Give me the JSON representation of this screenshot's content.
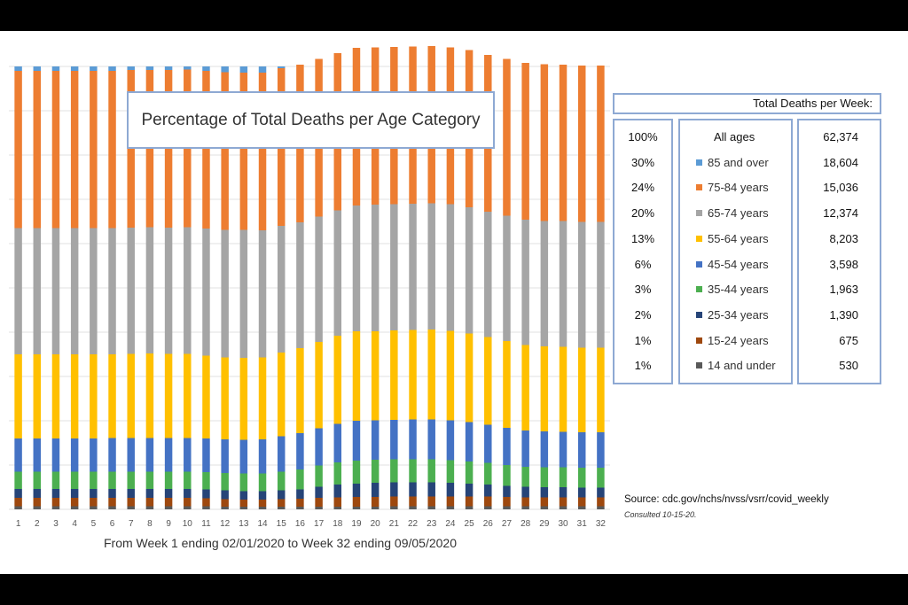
{
  "chart_data": {
    "type": "bar",
    "stacked": true,
    "percent": true,
    "title": "Percentage of Total  Deaths per Age Category",
    "xlabel": "From Week 1 ending 02/01/2020 to Week 32 ending 09/05/2020",
    "ylim": [
      0,
      100
    ],
    "grid": true,
    "categories": [
      "1",
      "2",
      "3",
      "4",
      "5",
      "6",
      "7",
      "8",
      "9",
      "10",
      "11",
      "12",
      "13",
      "14",
      "15",
      "16",
      "17",
      "18",
      "19",
      "20",
      "21",
      "22",
      "23",
      "24",
      "25",
      "26",
      "27",
      "28",
      "29",
      "30",
      "31",
      "32"
    ],
    "series": [
      {
        "name": "14 and under",
        "color": "#595959",
        "values": [
          0.7,
          0.7,
          0.7,
          0.7,
          0.7,
          0.7,
          0.7,
          0.7,
          0.7,
          0.7,
          0.7,
          0.6,
          0.6,
          0.6,
          0.6,
          0.6,
          0.6,
          0.6,
          0.6,
          0.6,
          0.7,
          0.7,
          0.7,
          0.7,
          0.7,
          0.7,
          0.7,
          0.7,
          0.7,
          0.7,
          0.7,
          0.7
        ]
      },
      {
        "name": "15-24 years",
        "color": "#9e480e",
        "values": [
          1.9,
          1.9,
          1.9,
          1.9,
          1.9,
          1.9,
          1.9,
          1.9,
          1.9,
          1.9,
          1.8,
          1.7,
          1.6,
          1.6,
          1.7,
          1.8,
          2.0,
          2.1,
          2.2,
          2.2,
          2.2,
          2.2,
          2.2,
          2.2,
          2.2,
          2.2,
          2.1,
          2.0,
          2.0,
          2.0,
          2.0,
          2.0
        ]
      },
      {
        "name": "25-34 years",
        "color": "#264478",
        "values": [
          2.0,
          2.0,
          2.0,
          2.0,
          2.0,
          2.0,
          2.0,
          2.0,
          2.0,
          2.0,
          2.0,
          2.0,
          1.9,
          1.9,
          2.0,
          2.1,
          2.5,
          2.9,
          3.0,
          3.2,
          3.2,
          3.2,
          3.2,
          3.1,
          2.9,
          2.7,
          2.5,
          2.4,
          2.3,
          2.3,
          2.2,
          2.2
        ]
      },
      {
        "name": "35-44 years",
        "color": "#4caf50",
        "values": [
          3.9,
          3.9,
          3.9,
          3.9,
          3.9,
          3.9,
          3.9,
          3.9,
          3.9,
          3.9,
          3.9,
          3.9,
          4.0,
          4.0,
          4.2,
          4.5,
          4.8,
          5.0,
          5.2,
          5.2,
          5.2,
          5.2,
          5.2,
          5.1,
          5.0,
          4.9,
          4.7,
          4.5,
          4.5,
          4.5,
          4.5,
          4.5
        ]
      },
      {
        "name": "45-54 years",
        "color": "#4472c4",
        "values": [
          7.5,
          7.5,
          7.5,
          7.5,
          7.5,
          7.6,
          7.6,
          7.6,
          7.6,
          7.6,
          7.6,
          7.6,
          7.6,
          7.7,
          8.0,
          8.2,
          8.4,
          8.7,
          9.0,
          8.9,
          8.9,
          9.0,
          9.0,
          9.0,
          8.9,
          8.6,
          8.4,
          8.2,
          8.1,
          8.0,
          8.0,
          8.0
        ]
      },
      {
        "name": "55-64 years",
        "color": "#ffc000",
        "values": [
          19.0,
          19.0,
          19.0,
          19.0,
          19.0,
          18.9,
          19.0,
          19.1,
          19.0,
          19.0,
          18.7,
          18.5,
          18.5,
          18.5,
          18.9,
          19.2,
          19.5,
          19.9,
          20.2,
          20.1,
          20.2,
          20.2,
          20.3,
          20.2,
          20.0,
          19.8,
          19.6,
          19.3,
          19.2,
          19.2,
          19.1,
          19.1
        ]
      },
      {
        "name": "65-74 years",
        "color": "#a5a5a5",
        "values": [
          28.5,
          28.5,
          28.5,
          28.5,
          28.5,
          28.5,
          28.5,
          28.5,
          28.5,
          28.6,
          28.7,
          28.8,
          28.9,
          28.7,
          28.6,
          28.4,
          28.3,
          28.3,
          28.4,
          28.6,
          28.5,
          28.5,
          28.5,
          28.6,
          28.5,
          28.3,
          28.3,
          28.3,
          28.3,
          28.4,
          28.4,
          28.4
        ]
      },
      {
        "name": "75-84 years",
        "color": "#ed7d31",
        "values": [
          35.5,
          35.5,
          35.5,
          35.5,
          35.5,
          35.5,
          35.6,
          35.5,
          35.6,
          35.6,
          35.6,
          35.6,
          35.5,
          35.6,
          35.6,
          35.6,
          35.6,
          35.5,
          35.6,
          35.5,
          35.5,
          35.5,
          35.5,
          35.4,
          35.5,
          35.4,
          35.4,
          35.4,
          35.4,
          35.3,
          35.3,
          35.3
        ]
      },
      {
        "name": "85 and over",
        "color": "#5b9bd5",
        "values": [
          1.0,
          1.0,
          1.0,
          1.0,
          1.0,
          1.0,
          0.8,
          0.8,
          0.8,
          0.7,
          1.0,
          2.8,
          3.4,
          3.4,
          2.5,
          1.6,
          0.5,
          -1.0,
          -2.2,
          -2.3,
          -2.4,
          -2.5,
          -2.6,
          -2.3,
          -2.0,
          -1.3,
          -0.7,
          -0.2,
          -0.0,
          -0.0,
          -0.0,
          -0.0
        ]
      }
    ]
  },
  "legend": {
    "header": "Total Deaths per Week:",
    "pct_values": [
      "100%",
      "30%",
      "24%",
      "20%",
      "13%",
      "6%",
      "3%",
      "2%",
      "1%",
      "1%"
    ],
    "age_header": "All ages",
    "totals": [
      "62,374",
      "18,604",
      "15,036",
      "12,374",
      "8,203",
      "3,598",
      "1,963",
      "1,390",
      "675",
      "530"
    ],
    "categories": [
      {
        "label": "85 and over",
        "color": "#5b9bd5"
      },
      {
        "label": "75-84 years",
        "color": "#ed7d31"
      },
      {
        "label": "65-74 years",
        "color": "#a5a5a5"
      },
      {
        "label": "55-64 years",
        "color": "#ffc000"
      },
      {
        "label": "45-54 years",
        "color": "#4472c4"
      },
      {
        "label": "35-44 years",
        "color": "#4caf50"
      },
      {
        "label": "25-34 years",
        "color": "#264478"
      },
      {
        "label": "15-24 years",
        "color": "#9e480e"
      },
      {
        "label": "14 and under",
        "color": "#595959"
      }
    ]
  },
  "source": {
    "text": "Source: cdc.gov/nchs/nvss/vsrr/covid_weekly",
    "consulted": "Consulted 10-15-20."
  }
}
